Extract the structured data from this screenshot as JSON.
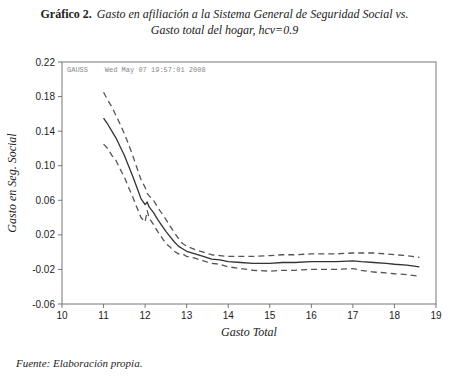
{
  "chart_data": {
    "type": "line",
    "title": "Gráfico 2.",
    "subtitle": [
      "Gasto en afiliación a la Sistema General de Seguridad Social vs.",
      "Gasto total del hogar, hcv=0.9"
    ],
    "x_label": "Gasto Total",
    "y_label": "Gasto en Seg. Social",
    "annotations": [
      "GAUSS    Wed May 07 19:57:01 2008",
      "Fuente: Elaboración propia."
    ],
    "xlim": [
      10,
      19
    ],
    "ylim": [
      -0.06,
      0.22
    ],
    "xticks": [
      10,
      11,
      12,
      13,
      14,
      15,
      16,
      17,
      18,
      19
    ],
    "yticks": [
      -0.06,
      -0.02,
      0.02,
      0.06,
      {
        "value": 0.1,
        "label": "0.10"
      },
      0.14,
      0.18,
      0.22
    ],
    "grid": false,
    "x": [
      11.0,
      11.1,
      11.2,
      11.3,
      11.4,
      11.5,
      11.6,
      11.7,
      11.8,
      11.9,
      12.0,
      12.05,
      12.1,
      12.2,
      12.3,
      12.4,
      12.5,
      12.6,
      12.7,
      12.8,
      12.9,
      13.0,
      13.2,
      13.4,
      13.6,
      13.8,
      14.0,
      14.3,
      14.6,
      15.0,
      15.3,
      15.6,
      16.0,
      16.3,
      16.6,
      17.0,
      17.2,
      17.5,
      17.8,
      18.0,
      18.3,
      18.6
    ],
    "series": [
      {
        "color": "#555555",
        "line_style": "dashed",
        "values": [
          0.185,
          0.176,
          0.168,
          0.158,
          0.148,
          0.137,
          0.125,
          0.112,
          0.098,
          0.084,
          0.075,
          0.068,
          0.065,
          0.06,
          0.052,
          0.045,
          0.038,
          0.03,
          0.023,
          0.016,
          0.01,
          0.007,
          0.003,
          -0.0,
          -0.003,
          -0.004,
          -0.005,
          -0.005,
          -0.005,
          -0.004,
          -0.003,
          -0.003,
          -0.002,
          -0.002,
          -0.002,
          -0.001,
          -0.001,
          -0.001,
          -0.002,
          -0.003,
          -0.004,
          -0.006
        ]
      },
      {
        "color": "#555555",
        "line_style": "dashed",
        "values": [
          0.125,
          0.12,
          0.112,
          0.106,
          0.096,
          0.087,
          0.075,
          0.064,
          0.052,
          0.04,
          0.035,
          0.048,
          0.039,
          0.032,
          0.024,
          0.017,
          0.01,
          0.006,
          0.001,
          -0.002,
          -0.002,
          -0.005,
          -0.007,
          -0.01,
          -0.013,
          -0.014,
          -0.017,
          -0.019,
          -0.021,
          -0.022,
          -0.021,
          -0.021,
          -0.02,
          -0.02,
          -0.02,
          -0.019,
          -0.021,
          -0.023,
          -0.024,
          -0.025,
          -0.026,
          -0.028
        ]
      },
      {
        "color": "#333333",
        "line_style": "solid",
        "values": [
          0.155,
          0.148,
          0.14,
          0.132,
          0.122,
          0.112,
          0.1,
          0.088,
          0.075,
          0.062,
          0.055,
          0.058,
          0.052,
          0.046,
          0.038,
          0.031,
          0.024,
          0.018,
          0.012,
          0.007,
          0.004,
          0.001,
          -0.002,
          -0.005,
          -0.008,
          -0.009,
          -0.011,
          -0.012,
          -0.013,
          -0.013,
          -0.012,
          -0.012,
          -0.011,
          -0.011,
          -0.011,
          -0.01,
          -0.011,
          -0.012,
          -0.013,
          -0.014,
          -0.015,
          -0.017
        ]
      }
    ]
  }
}
